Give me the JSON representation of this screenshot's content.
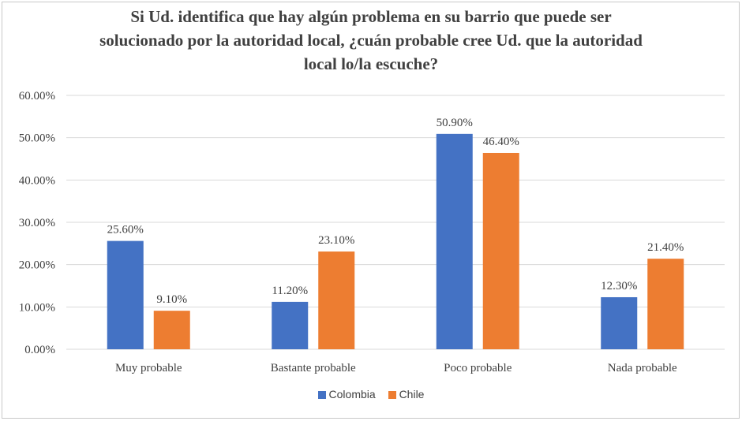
{
  "chart_data": {
    "type": "bar",
    "title_lines": [
      "Si Ud. identifica que hay algún problema en su barrio que puede ser",
      "solucionado por la autoridad local, ¿cuán probable cree Ud. que la autoridad",
      "local lo/la escuche?"
    ],
    "categories": [
      "Muy probable",
      "Bastante probable",
      "Poco probable",
      "Nada probable"
    ],
    "series": [
      {
        "name": "Colombia",
        "color": "#4472C4",
        "values": [
          25.6,
          11.2,
          50.9,
          12.3
        ],
        "labels": [
          "25.60%",
          "11.20%",
          "50.90%",
          "12.30%"
        ]
      },
      {
        "name": "Chile",
        "color": "#ED7D31",
        "values": [
          9.1,
          23.1,
          46.4,
          21.4
        ],
        "labels": [
          "9.10%",
          "23.10%",
          "46.40%",
          "21.40%"
        ]
      }
    ],
    "y_ticks": [
      "0.00%",
      "10.00%",
      "20.00%",
      "30.00%",
      "40.00%",
      "50.00%",
      "60.00%"
    ],
    "ylim": [
      0,
      60
    ],
    "grid": true,
    "gridline_color": "#d9d9d9",
    "legend_position": "bottom"
  }
}
